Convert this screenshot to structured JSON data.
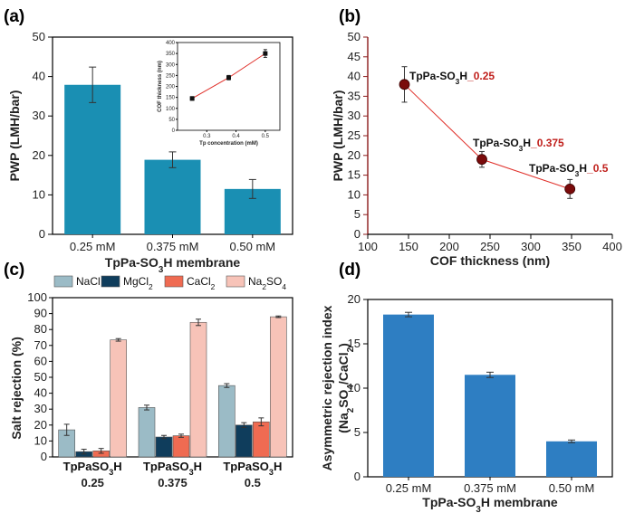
{
  "chart_data": [
    {
      "panel": "(a)",
      "type": "bar",
      "categories": [
        "0.25 mM",
        "0.375 mM",
        "0.50 mM"
      ],
      "values": [
        37.9,
        18.9,
        11.5
      ],
      "errors": [
        4.5,
        2.0,
        2.4
      ],
      "xlabel": "TpPa-SO3H membrane",
      "ylabel": "PWP (LMH/bar)",
      "ylim": [
        0,
        50
      ],
      "yticks": [
        0,
        10,
        20,
        30,
        40,
        50
      ],
      "color": "#1a8fb3",
      "inset": {
        "type": "line",
        "x": [
          0.25,
          0.375,
          0.5
        ],
        "y": [
          145,
          240,
          350
        ],
        "errors": [
          8,
          10,
          18
        ],
        "xlabel": "Tp concentration (mM)",
        "ylabel": "COF thickness (nm)",
        "xlim": [
          0.2,
          0.55
        ],
        "ylim": [
          0,
          400
        ],
        "xticks": [
          0.3,
          0.4,
          0.5
        ],
        "yticks": [
          0,
          50,
          100,
          150,
          200,
          250,
          300,
          350,
          400
        ],
        "line_color": "#e0302a"
      }
    },
    {
      "panel": "(b)",
      "type": "scatter",
      "x": [
        145,
        240,
        348
      ],
      "y": [
        38,
        19,
        11.5
      ],
      "errors": [
        4.5,
        2.0,
        2.4
      ],
      "annotations": [
        {
          "prefix": "TpPa-SO",
          "sub": "3",
          "mid": "H",
          "suffix": "_0.25"
        },
        {
          "prefix": "TpPa-SO",
          "sub": "3",
          "mid": "H",
          "suffix": "_0.375"
        },
        {
          "prefix": "TpPa-SO",
          "sub": "3",
          "mid": "H",
          "suffix": "_0.5"
        }
      ],
      "xlabel": "COF thickness (nm)",
      "ylabel": "PWP (LMH/bar)",
      "xlim": [
        100,
        400
      ],
      "ylim": [
        0,
        50
      ],
      "xticks": [
        100,
        150,
        200,
        250,
        300,
        350,
        400
      ],
      "yticks": [
        0,
        5,
        10,
        15,
        20,
        25,
        30,
        35,
        40,
        45,
        50
      ],
      "marker_color": "#7a0b0b",
      "line_color": "#e0302a",
      "axis_color": "#8b1a1a"
    },
    {
      "panel": "(c)",
      "type": "bar",
      "groups": [
        {
          "line1": "TpPaSO",
          "sub": "3",
          "mid": "H",
          "line2": "0.25"
        },
        {
          "line1": "TpPaSO",
          "sub": "3",
          "mid": "H",
          "line2": "0.375"
        },
        {
          "line1": "TpPaSO",
          "sub": "3",
          "mid": "H",
          "line2": "0.5"
        }
      ],
      "series": [
        {
          "name": "NaCl",
          "sub": "",
          "color": "#9bbbc6",
          "values": [
            17,
            31,
            44.8
          ],
          "errors": [
            3.5,
            1.5,
            1.2
          ]
        },
        {
          "name": "MgCl",
          "sub": "2",
          "color": "#0f3d5c",
          "values": [
            3.3,
            12.5,
            20
          ],
          "errors": [
            1.5,
            1.0,
            1.5
          ]
        },
        {
          "name": "CaCl",
          "sub": "2",
          "color": "#ef6b52",
          "values": [
            3.8,
            13.3,
            22
          ],
          "errors": [
            1.5,
            1.0,
            2.5
          ]
        },
        {
          "name": "Na",
          "sub": "2",
          "suffix": "SO",
          "sub2": "4",
          "color": "#f7c3b8",
          "values": [
            73.5,
            84.5,
            88
          ],
          "errors": [
            0.8,
            2.0,
            0.5
          ]
        }
      ],
      "ylabel": "Salt rejection (%)",
      "ylim": [
        0,
        100
      ],
      "yticks": [
        0,
        10,
        20,
        30,
        40,
        50,
        60,
        70,
        80,
        90,
        100
      ],
      "legend_placement": "top"
    },
    {
      "panel": "(d)",
      "type": "bar",
      "categories": [
        "0.25 mM",
        "0.375 mM",
        "0.50 mM"
      ],
      "values": [
        18.3,
        11.5,
        4.0
      ],
      "errors": [
        0.25,
        0.3,
        0.15
      ],
      "xlabel": "TpPa-SO3H membrane",
      "ylabel_line1": "Asymmetric rejection index",
      "ylabel_line2": "(Na2SO4/CaCl2)",
      "ylim": [
        0,
        20
      ],
      "yticks": [
        0,
        5,
        10,
        15,
        20
      ],
      "color": "#2e7ec2"
    }
  ],
  "labels": {
    "a_x_prefix": "TpPa-SO",
    "a_x_sub": "3",
    "a_x_suffix": "H membrane",
    "d_x_prefix": "TpPa-SO",
    "d_x_sub": "3",
    "d_x_suffix": "H membrane",
    "d_y1": "Asymmetric rejection index",
    "d_y2_a": "(Na",
    "d_y2_s1": "2",
    "d_y2_b": "SO",
    "d_y2_s2": "4",
    "d_y2_c": "/CaCl",
    "d_y2_s3": "2",
    "d_y2_d": ")"
  }
}
